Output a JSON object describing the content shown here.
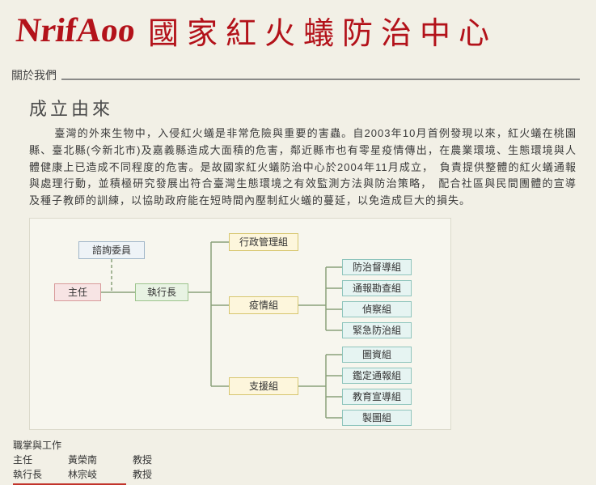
{
  "header": {
    "logo_script": "NrifAoo",
    "logo_cn": "國家紅火蟻防治中心"
  },
  "about_label": "關於我們",
  "origin_heading": "成立由來",
  "body": "臺灣的外來生物中，入侵紅火蟻是非常危險與重要的害蟲。自2003年10月首例發現以來，紅火蟻在桃園縣、臺北縣(今新北市)及嘉義縣造成大面積的危害，鄰近縣市也有零星疫情傳出，在農業環境、生態環境與人體健康上已造成不同程度的危害。是故國家紅火蟻防治中心於2004年11月成立，　負責提供整體的紅火蟻通報與處理行動，並積極研究發展出符合臺灣生態環境之有效監測方法與防治策略，　配合社區與民間團體的宣導及種子教師的訓練，以協助政府能在短時間內壓制紅火蟻的蔓延，以免造成巨大的損失。",
  "chart": {
    "colors": {
      "advisor_fill": "#eef3f7",
      "advisor_border": "#9fb5c8",
      "director_fill": "#f7e4e4",
      "director_border": "#d89a9a",
      "exec_fill": "#e8f3e3",
      "exec_border": "#9cc48c",
      "admin_fill": "#fdf6dc",
      "admin_border": "#d7c66f",
      "epi_fill": "#fdf6dc",
      "epi_border": "#d7c66f",
      "support_fill": "#fdf6dc",
      "support_border": "#d7c66f",
      "leaf_fill": "#e6f4f2",
      "leaf_border": "#8fc5bd",
      "line": "#8aa07a"
    },
    "advisor": "諮詢委員",
    "director": "主任",
    "exec": "執行長",
    "admin_group": "行政管理組",
    "epidemic_group": "疫情組",
    "support_group": "支援組",
    "epi_children": [
      "防治督導組",
      "通報勘查組",
      "偵察組",
      "緊急防治組"
    ],
    "support_children": [
      "圖資組",
      "鑑定通報組",
      "教育宣導組",
      "製圖組"
    ]
  },
  "footer": {
    "title": "職掌與工作",
    "rows": [
      {
        "role": "主任",
        "name": "黃榮南",
        "title": "教授"
      },
      {
        "role": "執行長",
        "name": "林宗岐",
        "title": "教授"
      }
    ]
  }
}
